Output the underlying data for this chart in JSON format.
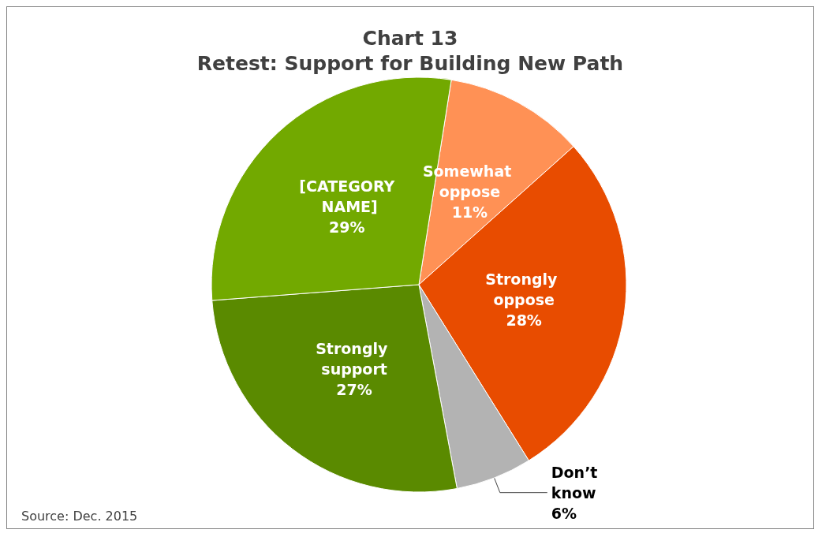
{
  "chart_data": {
    "type": "pie",
    "title": "Chart 13\nRetest: Support for Building New Path",
    "categories": [
      "Somewhat oppose",
      "Strongly oppose",
      "Don’t know",
      "Strongly support",
      "[CATEGORY NAME]"
    ],
    "values": [
      11,
      28,
      6,
      27,
      29
    ],
    "value_labels": [
      "11%",
      "28%",
      "6%",
      "27%",
      "29%"
    ],
    "colors": [
      "#ff9155",
      "#e84c00",
      "#b3b3b3",
      "#5a8a00",
      "#72a900"
    ],
    "legend": false,
    "annotations": [
      "Source: Dec. 2015"
    ]
  }
}
